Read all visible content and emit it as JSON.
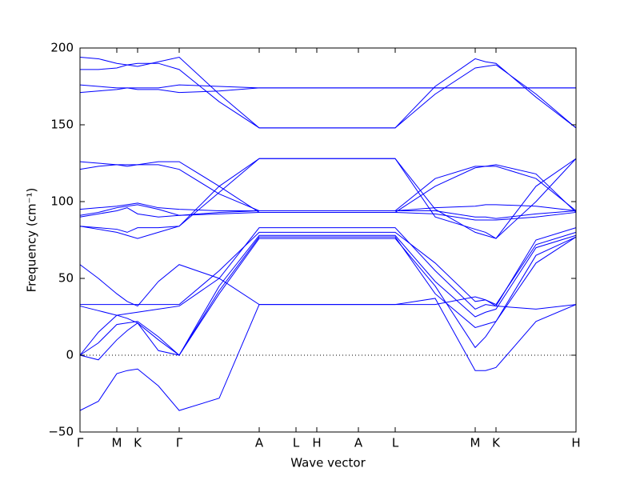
{
  "chart_data": {
    "type": "line",
    "xlabel": "Wave vector",
    "ylabel": "Frequency (cm⁻¹)",
    "color": "#0000ff",
    "xlim": [
      0,
      620
    ],
    "ylim": [
      -50,
      200
    ],
    "xticks": [
      {
        "value": 0,
        "label": "Γ"
      },
      {
        "value": 46,
        "label": "M"
      },
      {
        "value": 72,
        "label": "K"
      },
      {
        "value": 124,
        "label": "Γ"
      },
      {
        "value": 224,
        "label": "A"
      },
      {
        "value": 270,
        "label": "L"
      },
      {
        "value": 296,
        "label": "H"
      },
      {
        "value": 348,
        "label": "A"
      },
      {
        "value": 394,
        "label": "L"
      },
      {
        "value": 494,
        "label": "M"
      },
      {
        "value": 520,
        "label": "K"
      },
      {
        "value": 620,
        "label": "H"
      }
    ],
    "yticks": [
      {
        "value": -50,
        "label": "−50"
      },
      0,
      50,
      100,
      150,
      200
    ],
    "hline": 0,
    "x": [
      0,
      23,
      46,
      59,
      72,
      98,
      124,
      174,
      224,
      247,
      270,
      283,
      296,
      322,
      348,
      371,
      394,
      444,
      494,
      507,
      520,
      570,
      620
    ],
    "series": [
      {
        "values": [
          -36,
          -30,
          -12,
          -10,
          -9,
          -20,
          -36,
          -28,
          33,
          33,
          33,
          33,
          33,
          33,
          33,
          33,
          33,
          37,
          -10,
          -10,
          -8,
          22,
          33
        ]
      },
      {
        "values": [
          0,
          -3,
          10,
          16,
          21,
          3,
          0,
          40,
          76,
          76,
          76,
          76,
          76,
          76,
          76,
          76,
          76,
          45,
          5,
          12,
          22,
          60,
          77
        ]
      },
      {
        "values": [
          0,
          8,
          20,
          21,
          22,
          12,
          0,
          42,
          77,
          77,
          77,
          77,
          77,
          77,
          77,
          77,
          77,
          40,
          18,
          20,
          22,
          65,
          77
        ]
      },
      {
        "values": [
          0,
          15,
          26,
          24,
          21,
          10,
          0,
          45,
          78,
          78,
          78,
          78,
          78,
          78,
          78,
          78,
          78,
          48,
          25,
          28,
          30,
          70,
          78
        ]
      },
      {
        "values": [
          32,
          29,
          26,
          27,
          28,
          30,
          32,
          50,
          83,
          83,
          83,
          83,
          83,
          83,
          83,
          83,
          83,
          55,
          30,
          33,
          32,
          75,
          83
        ]
      },
      {
        "values": [
          33,
          33,
          33,
          33,
          33,
          33,
          33,
          55,
          80,
          80,
          80,
          80,
          80,
          80,
          80,
          80,
          80,
          60,
          35,
          36,
          33,
          72,
          80
        ]
      },
      {
        "values": [
          59,
          50,
          40,
          35,
          32,
          48,
          59,
          50,
          33,
          33,
          33,
          33,
          33,
          33,
          33,
          33,
          33,
          33,
          38,
          36,
          32,
          30,
          33
        ]
      },
      {
        "values": [
          84,
          82,
          80,
          78,
          76,
          80,
          84,
          110,
          128,
          128,
          128,
          128,
          128,
          128,
          128,
          128,
          128,
          95,
          80,
          78,
          76,
          100,
          128
        ]
      },
      {
        "values": [
          84,
          83,
          82,
          80,
          83,
          83,
          84,
          106,
          128,
          128,
          128,
          128,
          128,
          128,
          128,
          128,
          128,
          90,
          82,
          80,
          76,
          110,
          128
        ]
      },
      {
        "values": [
          90,
          92,
          94,
          96,
          92,
          90,
          91,
          92,
          93,
          93,
          93,
          93,
          93,
          93,
          93,
          93,
          93,
          92,
          88,
          88,
          88,
          90,
          93
        ]
      },
      {
        "values": [
          91,
          93,
          96,
          97,
          98,
          95,
          91,
          93,
          94,
          94,
          94,
          94,
          94,
          94,
          94,
          94,
          94,
          94,
          90,
          90,
          89,
          92,
          94
        ]
      },
      {
        "values": [
          95,
          96,
          97,
          98,
          99,
          96,
          95,
          94,
          94,
          94,
          94,
          94,
          94,
          94,
          94,
          94,
          94,
          96,
          97,
          98,
          98,
          97,
          94
        ]
      },
      {
        "values": [
          121,
          123,
          124,
          124,
          124,
          124,
          121,
          105,
          94,
          94,
          94,
          94,
          94,
          94,
          94,
          94,
          94,
          115,
          123,
          123,
          123,
          115,
          94
        ]
      },
      {
        "values": [
          126,
          125,
          124,
          123,
          124,
          126,
          126,
          110,
          93,
          93,
          93,
          93,
          93,
          93,
          93,
          93,
          93,
          110,
          122,
          123,
          124,
          118,
          93
        ]
      },
      {
        "values": [
          171,
          172,
          173,
          174,
          174,
          174,
          176,
          175,
          174,
          174,
          174,
          174,
          174,
          174,
          174,
          174,
          174,
          174,
          174,
          174,
          174,
          174,
          174
        ]
      },
      {
        "values": [
          176,
          175,
          174,
          174,
          173,
          173,
          171,
          172,
          174,
          174,
          174,
          174,
          174,
          174,
          174,
          174,
          174,
          174,
          174,
          174,
          174,
          174,
          174
        ]
      },
      {
        "values": [
          186,
          186,
          187,
          189,
          190,
          190,
          186,
          165,
          148,
          148,
          148,
          148,
          148,
          148,
          148,
          148,
          148,
          170,
          187,
          188,
          189,
          170,
          148
        ]
      },
      {
        "values": [
          194,
          193,
          190,
          189,
          188,
          191,
          194,
          170,
          148,
          148,
          148,
          148,
          148,
          148,
          148,
          148,
          148,
          175,
          193,
          191,
          190,
          168,
          148
        ]
      }
    ]
  }
}
